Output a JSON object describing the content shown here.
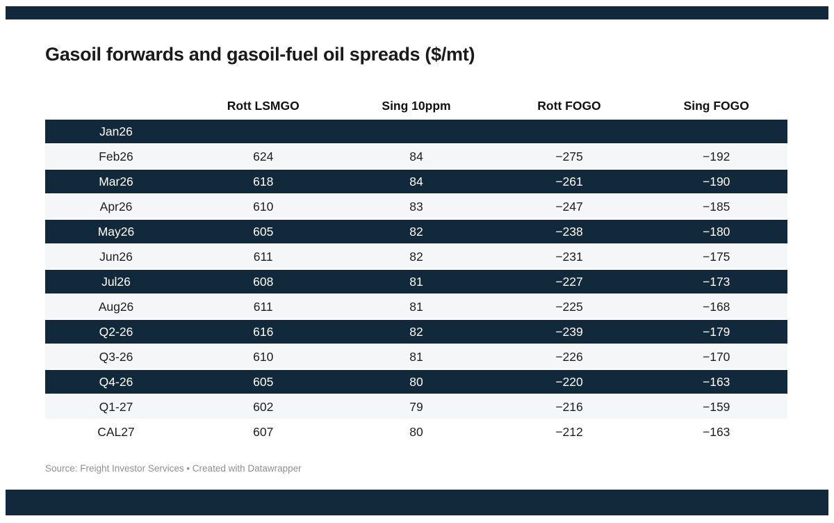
{
  "title": "Gasoil forwards and gasoil-fuel oil spreads ($/mt)",
  "footer": {
    "source_line": "Source: Freight Investor Services • Created with Datawrapper"
  },
  "colors": {
    "dark_row": "#12293C",
    "dark_row_text": "#FFFFFF",
    "light_row": "#F5F6F7",
    "body_text": "#1D1D1D",
    "footer_text": "#8F8F8F",
    "bar": "#12293C"
  },
  "chart_data": {
    "type": "table",
    "title": "Gasoil forwards and gasoil-fuel oil spreads ($/mt)",
    "columns": [
      "Rott LSMGO",
      "Sing 10ppm",
      "Rott FOGO",
      "Sing FOGO"
    ],
    "rows": [
      {
        "label": "Jan26",
        "style": "dark",
        "values": [
          null,
          null,
          null,
          null
        ]
      },
      {
        "label": "Feb26",
        "style": "light",
        "values": [
          624,
          84,
          -275,
          -192
        ]
      },
      {
        "label": "Mar26",
        "style": "dark",
        "values": [
          618,
          84,
          -261,
          -190
        ]
      },
      {
        "label": "Apr26",
        "style": "light",
        "values": [
          610,
          83,
          -247,
          -185
        ]
      },
      {
        "label": "May26",
        "style": "dark",
        "values": [
          605,
          82,
          -238,
          -180
        ]
      },
      {
        "label": "Jun26",
        "style": "light",
        "values": [
          611,
          82,
          -231,
          -175
        ]
      },
      {
        "label": "Jul26",
        "style": "dark",
        "values": [
          608,
          81,
          -227,
          -173
        ]
      },
      {
        "label": "Aug26",
        "style": "light",
        "values": [
          611,
          81,
          -225,
          -168
        ]
      },
      {
        "label": "Q2-26",
        "style": "dark",
        "values": [
          616,
          82,
          -239,
          -179
        ]
      },
      {
        "label": "Q3-26",
        "style": "light",
        "values": [
          610,
          81,
          -226,
          -170
        ]
      },
      {
        "label": "Q4-26",
        "style": "dark",
        "values": [
          605,
          80,
          -220,
          -163
        ]
      },
      {
        "label": "Q1-27",
        "style": "light",
        "values": [
          602,
          79,
          -216,
          -159
        ]
      },
      {
        "label": "CAL27",
        "style": "plain",
        "values": [
          607,
          80,
          -212,
          -163
        ]
      }
    ],
    "layout": {
      "grid": "striped-rows",
      "legend": "none",
      "first_row_highlight_empty": "Jan26"
    },
    "source": "Freight Investor Services",
    "created_with": "Datawrapper"
  }
}
